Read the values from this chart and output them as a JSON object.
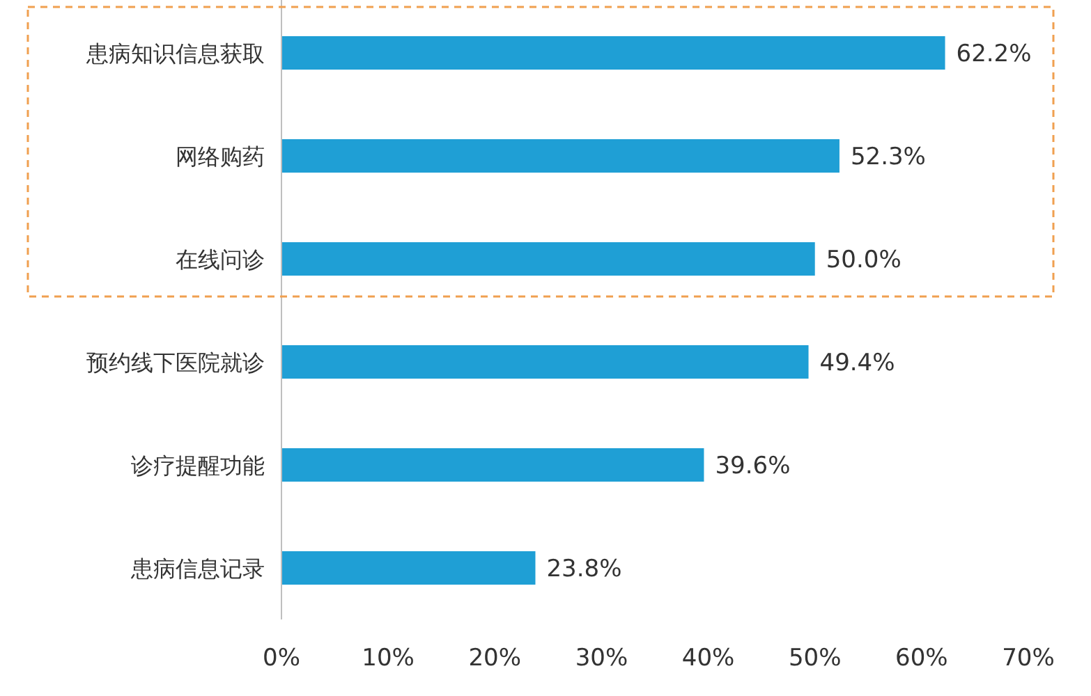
{
  "chart_data": {
    "type": "bar",
    "orientation": "horizontal",
    "categories": [
      "患病知识信息获取",
      "网络购药",
      "在线问诊",
      "预约线下医院就诊",
      "诊疗提醒功能",
      "患病信息记录"
    ],
    "values": [
      62.2,
      52.3,
      50.0,
      49.4,
      39.6,
      23.8
    ],
    "value_labels": [
      "62.2%",
      "52.3%",
      "50.0%",
      "49.4%",
      "39.6%",
      "23.8%"
    ],
    "color": "#1f9fd5",
    "xlim": [
      0,
      70
    ],
    "xticks": [
      {
        "value": 0,
        "label": "0%"
      },
      {
        "value": 10,
        "label": "10%"
      },
      {
        "value": 20,
        "label": "20%"
      },
      {
        "value": 30,
        "label": "30%"
      },
      {
        "value": 40,
        "label": "40%"
      },
      {
        "value": 50,
        "label": "50%"
      },
      {
        "value": 60,
        "label": "60%"
      },
      {
        "value": 70,
        "label": "70%"
      }
    ],
    "grid": false
  }
}
